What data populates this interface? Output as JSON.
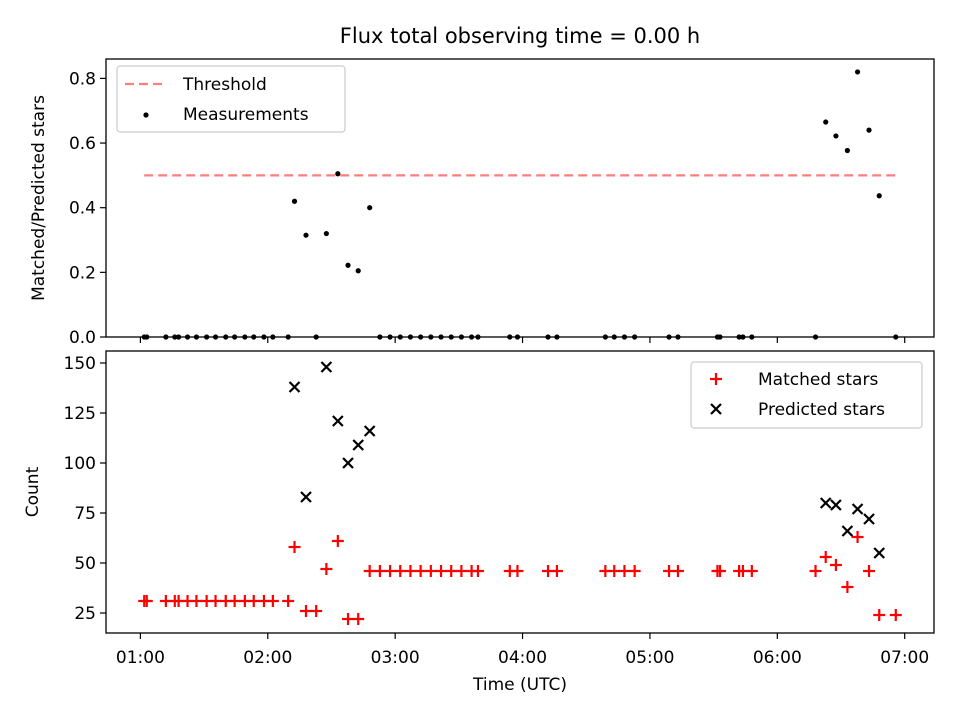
{
  "chart_data": [
    {
      "type": "scatter",
      "title": "Flux total observing time = 0.00 h",
      "xlabel": "",
      "ylabel": "Matched/Predicted stars",
      "xlim": [
        0.73,
        7.23
      ],
      "ylim": [
        0.0,
        0.86
      ],
      "yticks": [
        0.0,
        0.2,
        0.4,
        0.6,
        0.8
      ],
      "ytick_labels": [
        "0.0",
        "0.2",
        "0.4",
        "0.6",
        "0.8"
      ],
      "legend_position": "top-left",
      "threshold": {
        "name": "Threshold",
        "value": 0.5,
        "x_range": [
          1.03,
          6.93
        ],
        "color": "#ff7f7f"
      },
      "series": [
        {
          "name": "Measurements",
          "color": "#000000",
          "x": [
            1.03,
            1.05,
            1.2,
            1.27,
            1.3,
            1.37,
            1.44,
            1.52,
            1.59,
            1.67,
            1.74,
            1.82,
            1.89,
            1.97,
            2.04,
            2.16,
            2.21,
            2.3,
            2.38,
            2.46,
            2.55,
            2.63,
            2.71,
            2.8,
            2.88,
            2.96,
            3.04,
            3.12,
            3.2,
            3.28,
            3.36,
            3.44,
            3.52,
            3.6,
            3.65,
            3.9,
            3.96,
            4.2,
            4.27,
            4.65,
            4.72,
            4.8,
            4.88,
            5.15,
            5.22,
            5.53,
            5.55,
            5.7,
            5.73,
            5.8,
            6.3,
            6.38,
            6.46,
            6.55,
            6.63,
            6.72,
            6.8,
            6.93
          ],
          "y": [
            0,
            0,
            0,
            0,
            0,
            0,
            0,
            0,
            0,
            0,
            0,
            0,
            0,
            0,
            0,
            0,
            0.42,
            0.315,
            0,
            0.32,
            0.505,
            0.222,
            0.205,
            0.4,
            0,
            0,
            0,
            0,
            0,
            0,
            0,
            0,
            0,
            0,
            0,
            0,
            0,
            0,
            0,
            0,
            0,
            0,
            0,
            0,
            0,
            0,
            0,
            0,
            0,
            0,
            0,
            0.665,
            0.622,
            0.577,
            0.82,
            0.64,
            0.437,
            0
          ]
        }
      ]
    },
    {
      "type": "scatter",
      "title": "",
      "xlabel": "Time (UTC)",
      "ylabel": "Count",
      "xlim": [
        0.73,
        7.23
      ],
      "ylim": [
        15,
        156
      ],
      "yticks": [
        25,
        50,
        75,
        100,
        125,
        150
      ],
      "ytick_labels": [
        "25",
        "50",
        "75",
        "100",
        "125",
        "150"
      ],
      "xticks": [
        1,
        2,
        3,
        4,
        5,
        6,
        7
      ],
      "xtick_labels": [
        "01:00",
        "02:00",
        "03:00",
        "04:00",
        "05:00",
        "06:00",
        "07:00"
      ],
      "legend_position": "top-right",
      "series": [
        {
          "name": "Matched stars",
          "marker": "plus",
          "color": "#ff0000",
          "x": [
            1.03,
            1.05,
            1.2,
            1.27,
            1.3,
            1.37,
            1.44,
            1.52,
            1.59,
            1.67,
            1.74,
            1.82,
            1.89,
            1.97,
            2.04,
            2.16,
            2.21,
            2.3,
            2.38,
            2.46,
            2.55,
            2.63,
            2.71,
            2.8,
            2.88,
            2.96,
            3.04,
            3.12,
            3.2,
            3.28,
            3.36,
            3.44,
            3.52,
            3.6,
            3.65,
            3.9,
            3.96,
            4.2,
            4.27,
            4.65,
            4.72,
            4.8,
            4.88,
            5.15,
            5.22,
            5.53,
            5.55,
            5.7,
            5.73,
            5.8,
            6.3,
            6.38,
            6.46,
            6.55,
            6.63,
            6.72,
            6.8,
            6.93
          ],
          "y": [
            31,
            31,
            31,
            31,
            31,
            31,
            31,
            31,
            31,
            31,
            31,
            31,
            31,
            31,
            31,
            31,
            58,
            26,
            26,
            47,
            61,
            22,
            22,
            46,
            46,
            46,
            46,
            46,
            46,
            46,
            46,
            46,
            46,
            46,
            46,
            46,
            46,
            46,
            46,
            46,
            46,
            46,
            46,
            46,
            46,
            46,
            46,
            46,
            46,
            46,
            46,
            53,
            49,
            38,
            63,
            46,
            24,
            24
          ]
        },
        {
          "name": "Predicted stars",
          "marker": "x",
          "color": "#000000",
          "x": [
            2.21,
            2.3,
            2.46,
            2.55,
            2.63,
            2.71,
            2.8,
            6.38,
            6.46,
            6.55,
            6.63,
            6.72,
            6.8
          ],
          "y": [
            138,
            83,
            148,
            121,
            100,
            109,
            116,
            80,
            79,
            66,
            77,
            72,
            55
          ]
        }
      ]
    }
  ]
}
